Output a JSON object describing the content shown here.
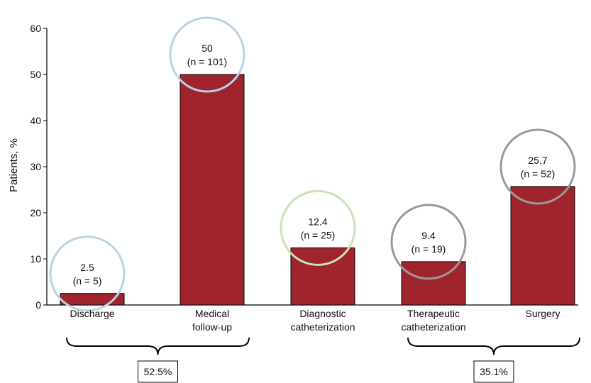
{
  "chart_data": {
    "type": "bar",
    "ylabel": "Patients, %",
    "ylim": [
      0,
      60
    ],
    "yticks": [
      0,
      10,
      20,
      30,
      40,
      50,
      60
    ],
    "grid": false,
    "bar_color": "#a0242e",
    "categories": [
      {
        "lines": [
          "Discharge"
        ],
        "value": 2.5,
        "pct_label": "2.5",
        "n_label": "(n = 5)",
        "circle_color": "#b9d3e6"
      },
      {
        "lines": [
          "Medical",
          "follow-up"
        ],
        "value": 50,
        "pct_label": "50",
        "n_label": "(n = 101)",
        "circle_color": "#b9d3e6"
      },
      {
        "lines": [
          "Diagnostic",
          "catheterization"
        ],
        "value": 12.4,
        "pct_label": "12.4",
        "n_label": "(n = 25)",
        "circle_color": "#c9e3b5"
      },
      {
        "lines": [
          "Therapeutic",
          "catheterization"
        ],
        "value": 9.4,
        "pct_label": "9.4",
        "n_label": "(n = 19)",
        "circle_color": "#9a9a9a"
      },
      {
        "lines": [
          "Surgery"
        ],
        "value": 25.7,
        "pct_label": "25.7",
        "n_label": "(n = 52)",
        "circle_color": "#9a9a9a"
      }
    ],
    "groups": [
      {
        "label": "52.5%",
        "span": [
          0,
          1
        ]
      },
      {
        "label": "35.1%",
        "span": [
          3,
          4
        ]
      }
    ]
  }
}
